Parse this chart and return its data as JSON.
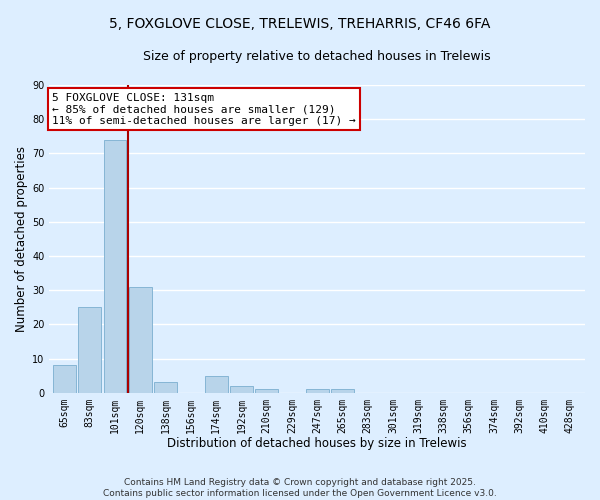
{
  "title": "5, FOXGLOVE CLOSE, TRELEWIS, TREHARRIS, CF46 6FA",
  "subtitle": "Size of property relative to detached houses in Trelewis",
  "xlabel": "Distribution of detached houses by size in Trelewis",
  "ylabel": "Number of detached properties",
  "bar_labels": [
    "65sqm",
    "83sqm",
    "101sqm",
    "120sqm",
    "138sqm",
    "156sqm",
    "174sqm",
    "192sqm",
    "210sqm",
    "229sqm",
    "247sqm",
    "265sqm",
    "283sqm",
    "301sqm",
    "319sqm",
    "338sqm",
    "356sqm",
    "374sqm",
    "392sqm",
    "410sqm",
    "428sqm"
  ],
  "bar_values": [
    8,
    25,
    74,
    31,
    3,
    0,
    5,
    2,
    1,
    0,
    1,
    1,
    0,
    0,
    0,
    0,
    0,
    0,
    0,
    0,
    0
  ],
  "bar_color": "#b8d4ea",
  "bar_edge_color": "#7aaed0",
  "vline_x": 2.5,
  "vline_color": "#aa0000",
  "annotation_text": "5 FOXGLOVE CLOSE: 131sqm\n← 85% of detached houses are smaller (129)\n11% of semi-detached houses are larger (17) →",
  "annotation_box_color": "#ffffff",
  "annotation_box_edge_color": "#cc0000",
  "ylim": [
    0,
    90
  ],
  "yticks": [
    0,
    10,
    20,
    30,
    40,
    50,
    60,
    70,
    80,
    90
  ],
  "background_color": "#ddeeff",
  "plot_background_color": "#ddeeff",
  "grid_color": "#ffffff",
  "footer_line1": "Contains HM Land Registry data © Crown copyright and database right 2025.",
  "footer_line2": "Contains public sector information licensed under the Open Government Licence v3.0.",
  "title_fontsize": 10,
  "subtitle_fontsize": 9,
  "axis_label_fontsize": 8.5,
  "tick_fontsize": 7,
  "annotation_fontsize": 8,
  "footer_fontsize": 6.5
}
